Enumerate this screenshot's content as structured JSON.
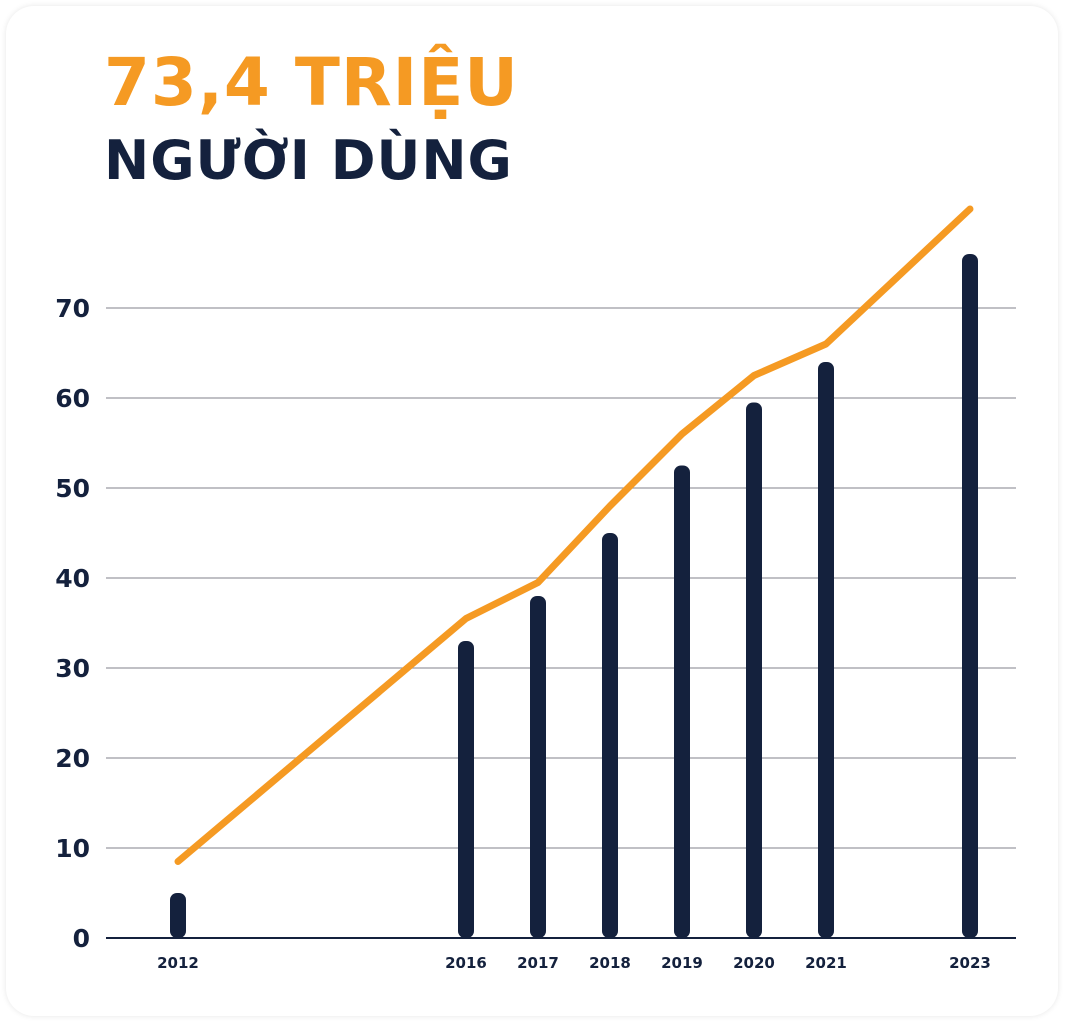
{
  "headline": {
    "value": "73,4 TRIỆU",
    "label": "NGƯỜI DÙNG"
  },
  "colors": {
    "accent": "#F59A23",
    "bars": "#14213D",
    "grid": "#9A9AA2",
    "axis": "#14213D"
  },
  "chart_data": {
    "type": "bar",
    "title": "73,4 TRIỆU NGƯỜI DÙNG",
    "xlabel": "",
    "ylabel": "",
    "categories": [
      "2012",
      "2016",
      "2017",
      "2018",
      "2019",
      "2020",
      "2021",
      "2023"
    ],
    "x": [
      2012,
      2016,
      2017,
      2018,
      2019,
      2020,
      2021,
      2023
    ],
    "series": [
      {
        "type": "bar",
        "values": [
          5,
          33,
          38,
          45,
          52.5,
          59.5,
          64,
          76
        ]
      },
      {
        "type": "line",
        "values": [
          8.5,
          35.5,
          39.5,
          48,
          56,
          62.5,
          66,
          81
        ]
      }
    ],
    "ylim": [
      0,
      82
    ],
    "yticks": [
      0,
      10,
      20,
      30,
      40,
      50,
      60,
      70
    ],
    "grid": true,
    "legend": "none"
  }
}
